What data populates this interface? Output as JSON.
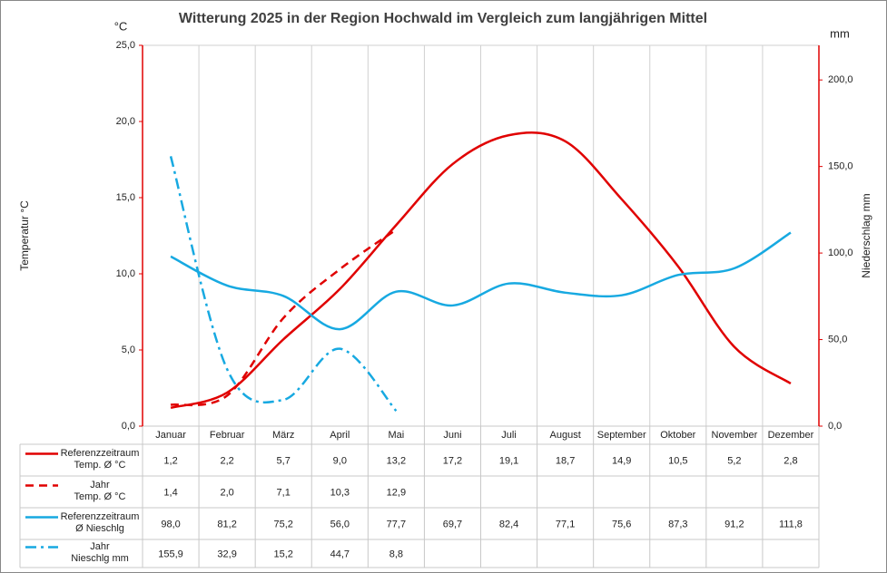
{
  "chart_data": {
    "type": "line",
    "title": "Witterung 2025 in der Region Hochwald im Vergleich zum langjährigen Mittel",
    "y_unit": "°C",
    "y2_unit": "mm",
    "ylabel": "Temperatur °C",
    "y2label": "Niederschlag mm",
    "categories": [
      "Januar",
      "Februar",
      "März",
      "April",
      "Mai",
      "Juni",
      "Juli",
      "August",
      "September",
      "Oktober",
      "November",
      "Dezember"
    ],
    "ylim": [
      0,
      25
    ],
    "yticks": [
      {
        "value": 0,
        "label": "0,0"
      },
      {
        "value": 5,
        "label": "5,0"
      },
      {
        "value": 10,
        "label": "10,0"
      },
      {
        "value": 15,
        "label": "15,0"
      },
      {
        "value": 20,
        "label": "20,0"
      },
      {
        "value": 25,
        "label": "25,0"
      }
    ],
    "y2lim": [
      0,
      220
    ],
    "y2ticks": [
      {
        "value": 0,
        "label": "0,0"
      },
      {
        "value": 50,
        "label": "50,0"
      },
      {
        "value": 100,
        "label": "100,0"
      },
      {
        "value": 150,
        "label": "150,0"
      },
      {
        "value": 200,
        "label": "200,0"
      }
    ],
    "grid": true,
    "series": [
      {
        "name": "Referenzzeitraum\nTemp. Ø °C",
        "color": "#e00000",
        "dash": "solid",
        "values": [
          1.2,
          2.2,
          5.7,
          9.0,
          13.2,
          17.2,
          19.1,
          18.7,
          14.9,
          10.5,
          5.2,
          2.8
        ],
        "value_labels": [
          "1,2",
          "2,2",
          "5,7",
          "9,0",
          "13,2",
          "17,2",
          "19,1",
          "18,7",
          "14,9",
          "10,5",
          "5,2",
          "2,8"
        ]
      },
      {
        "name": "Jahr\nTemp. Ø °C",
        "color": "#e00000",
        "dash": "dashed",
        "values": [
          1.4,
          2.0,
          7.1,
          10.3,
          12.9,
          null,
          null,
          null,
          null,
          null,
          null,
          null
        ],
        "value_labels": [
          "1,4",
          "2,0",
          "7,1",
          "10,3",
          "12,9",
          null,
          null,
          null,
          null,
          null,
          null,
          null
        ]
      },
      {
        "name": "Referenzzeitraum\nØ Nieschlg",
        "color": "#17a9e1",
        "dash": "solid",
        "axis": "y2",
        "values": [
          98.0,
          81.2,
          75.2,
          56.0,
          77.7,
          69.7,
          82.4,
          77.1,
          75.6,
          87.3,
          91.2,
          111.8
        ],
        "value_labels": [
          "98,0",
          "81,2",
          "75,2",
          "56,0",
          "77,7",
          "69,7",
          "82,4",
          "77,1",
          "75,6",
          "87,3",
          "91,2",
          "111,8"
        ]
      },
      {
        "name": "Jahr\nNieschlg mm",
        "color": "#17a9e1",
        "dash": "dashdot",
        "axis": "y2",
        "values": [
          155.9,
          32.9,
          15.2,
          44.7,
          8.8,
          null,
          null,
          null,
          null,
          null,
          null,
          null
        ],
        "value_labels": [
          "155,9",
          "32,9",
          "15,2",
          "44,7",
          "8,8",
          null,
          null,
          null,
          null,
          null,
          null,
          null
        ]
      }
    ]
  }
}
